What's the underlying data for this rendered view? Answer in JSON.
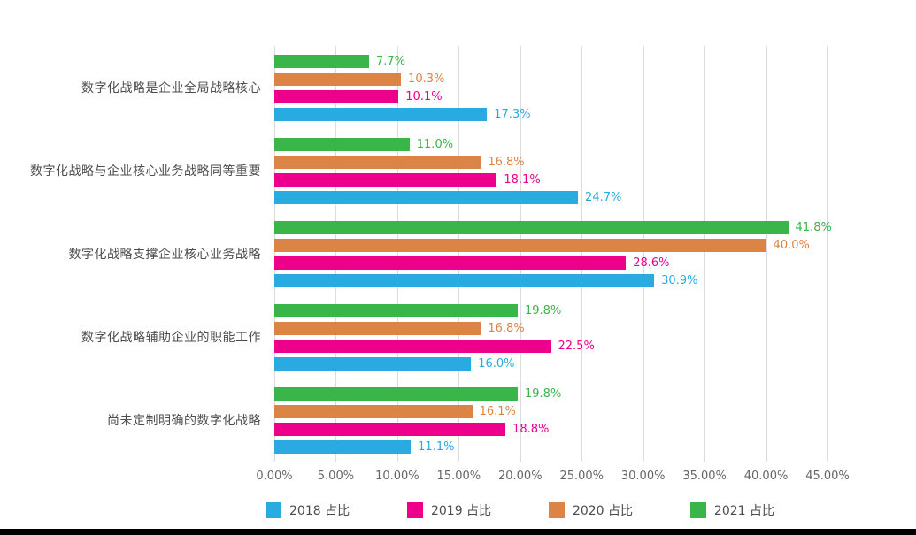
{
  "chart_data": {
    "type": "bar",
    "orientation": "horizontal",
    "title": "",
    "xlabel": "",
    "ylabel": "",
    "xlim": [
      0,
      45
    ],
    "grid": "vertical",
    "legend_position": "bottom",
    "x_ticks": [
      "0.00%",
      "5.00%",
      "10.00%",
      "15.00%",
      "20.00%",
      "25.00%",
      "30.00%",
      "35.00%",
      "40.00%",
      "45.00%"
    ],
    "categories": [
      "数字化战略是企业全局战略核心",
      "数字化战略与企业核心业务战略同等重要",
      "数字化战略支撑企业核心业务战略",
      "数字化战略辅助企业的职能工作",
      "尚未定制明确的数字化战略"
    ],
    "series": [
      {
        "name": "2018 占比",
        "color": "#29ABE2",
        "values": [
          17.3,
          24.7,
          30.9,
          16.0,
          11.1
        ]
      },
      {
        "name": "2019 占比",
        "color": "#EC008C",
        "values": [
          10.1,
          18.1,
          28.6,
          22.5,
          18.8
        ]
      },
      {
        "name": "2020 占比",
        "color": "#DC8445",
        "values": [
          10.3,
          16.8,
          40.0,
          16.8,
          16.1
        ]
      },
      {
        "name": "2021 占比",
        "color": "#39B54A",
        "values": [
          7.7,
          11.0,
          41.8,
          19.8,
          19.8
        ]
      }
    ],
    "value_label_format": "one-decimal-percent",
    "bar_order_within_group_top_to_bottom": [
      "2021 占比",
      "2020 占比",
      "2019 占比",
      "2018 占比"
    ]
  },
  "colors": {
    "gridline": "#dcdce0",
    "tick_text": "#666666",
    "category_text": "#4d4d4d",
    "footer_bar": "#000000",
    "background": "#ffffff"
  }
}
